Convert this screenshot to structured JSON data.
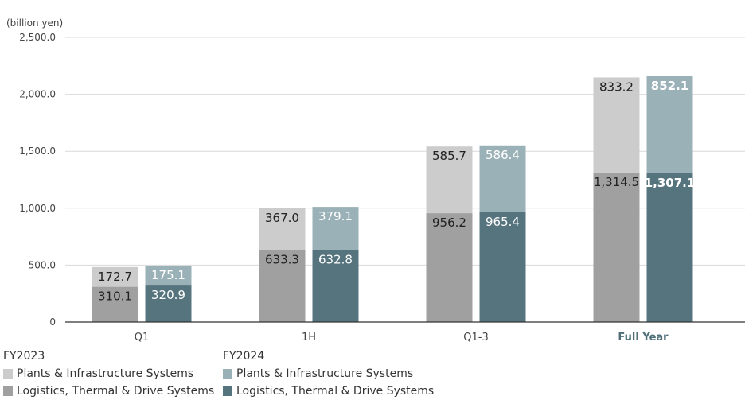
{
  "chart_data": {
    "type": "bar",
    "stacked": true,
    "unit_label": "(billion yen)",
    "categories": [
      "Q1",
      "1H",
      "Q1-3",
      "Full Year"
    ],
    "highlight_category": "Full Year",
    "ylim": [
      0,
      2500
    ],
    "yticks": [
      "0",
      "500.0",
      "1,000.0",
      "1,500.0",
      "2,000.0",
      "2,500.0"
    ],
    "ytick_values": [
      0,
      500,
      1000,
      1500,
      2000,
      2500
    ],
    "grid": true,
    "groups": [
      {
        "name": "FY2023",
        "series": [
          {
            "name": "Logistics, Thermal & Drive Systems",
            "color": "#a0a0a0",
            "values": [
              310.1,
              633.3,
              956.2,
              1314.5
            ],
            "labels": [
              "310.1",
              "633.3",
              "956.2",
              "1,314.5"
            ]
          },
          {
            "name": "Plants & Infrastructure Systems",
            "color": "#cccccc",
            "values": [
              172.7,
              367.0,
              585.7,
              833.2
            ],
            "labels": [
              "172.7",
              "367.0",
              "585.7",
              "833.2"
            ]
          }
        ]
      },
      {
        "name": "FY2024",
        "series": [
          {
            "name": "Logistics, Thermal & Drive Systems",
            "color": "#56747d",
            "values": [
              320.9,
              632.8,
              965.4,
              1307.1
            ],
            "labels": [
              "320.9",
              "632.8",
              "965.4",
              "1,307.1"
            ]
          },
          {
            "name": "Plants & Infrastructure Systems",
            "color": "#9bb1b8",
            "values": [
              175.1,
              379.1,
              586.4,
              852.1
            ],
            "labels": [
              "175.1",
              "379.1",
              "586.4",
              "852.1"
            ]
          }
        ]
      }
    ]
  },
  "colors": {
    "axis_text": "#444444",
    "grid": "#d9d9d9",
    "highlight_text": "#4f6f78",
    "label_dark": "#222222",
    "label_light": "#ffffff"
  },
  "legend": {
    "fy2023": {
      "title": "FY2023",
      "plants": {
        "label": "Plants & Infrastructure Systems",
        "color": "#cccccc"
      },
      "logistics": {
        "label": "Logistics, Thermal & Drive Systems",
        "color": "#a0a0a0"
      }
    },
    "fy2024": {
      "title": "FY2024",
      "plants": {
        "label": "Plants & Infrastructure Systems",
        "color": "#9bb1b8"
      },
      "logistics": {
        "label": "Logistics, Thermal & Drive Systems",
        "color": "#56747d"
      }
    }
  }
}
